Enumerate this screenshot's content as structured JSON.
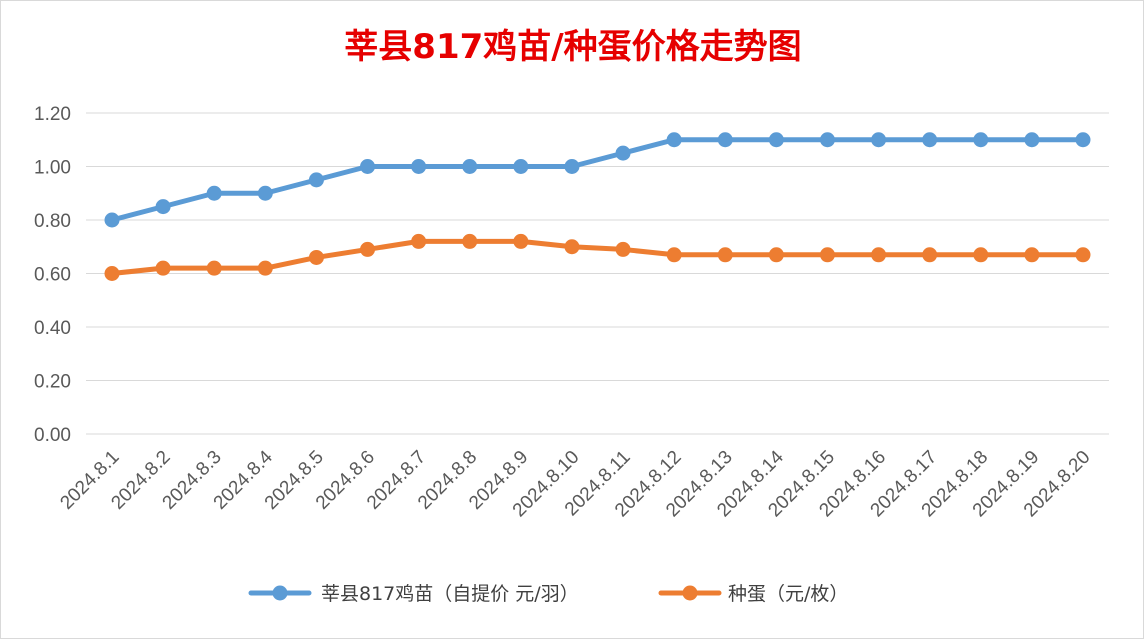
{
  "chart_data": {
    "type": "line",
    "title": "莘县817鸡苗/种蛋价格走势图",
    "xlabel": "",
    "ylabel": "",
    "categories": [
      "2024.8.1",
      "2024.8.2",
      "2024.8.3",
      "2024.8.4",
      "2024.8.5",
      "2024.8.6",
      "2024.8.7",
      "2024.8.8",
      "2024.8.9",
      "2024.8.10",
      "2024.8.11",
      "2024.8.12",
      "2024.8.13",
      "2024.8.14",
      "2024.8.15",
      "2024.8.16",
      "2024.8.17",
      "2024.8.18",
      "2024.8.19",
      "2024.8.20"
    ],
    "ylim": [
      0,
      1.2
    ],
    "yticks": [
      "0.00",
      "0.20",
      "0.40",
      "0.60",
      "0.80",
      "1.00",
      "1.20"
    ],
    "grid": true,
    "legend_position": "bottom",
    "series": [
      {
        "name": "莘县817鸡苗（自提价 元/羽）",
        "color": "#5b9bd5",
        "values": [
          0.8,
          0.85,
          0.9,
          0.9,
          0.95,
          1.0,
          1.0,
          1.0,
          1.0,
          1.0,
          1.05,
          1.1,
          1.1,
          1.1,
          1.1,
          1.1,
          1.1,
          1.1,
          1.1,
          1.1
        ]
      },
      {
        "name": "种蛋（元/枚）",
        "color": "#ed7d31",
        "values": [
          0.6,
          0.62,
          0.62,
          0.62,
          0.66,
          0.69,
          0.72,
          0.72,
          0.72,
          0.7,
          0.69,
          0.67,
          0.67,
          0.67,
          0.67,
          0.67,
          0.67,
          0.67,
          0.67,
          0.67
        ]
      }
    ]
  }
}
